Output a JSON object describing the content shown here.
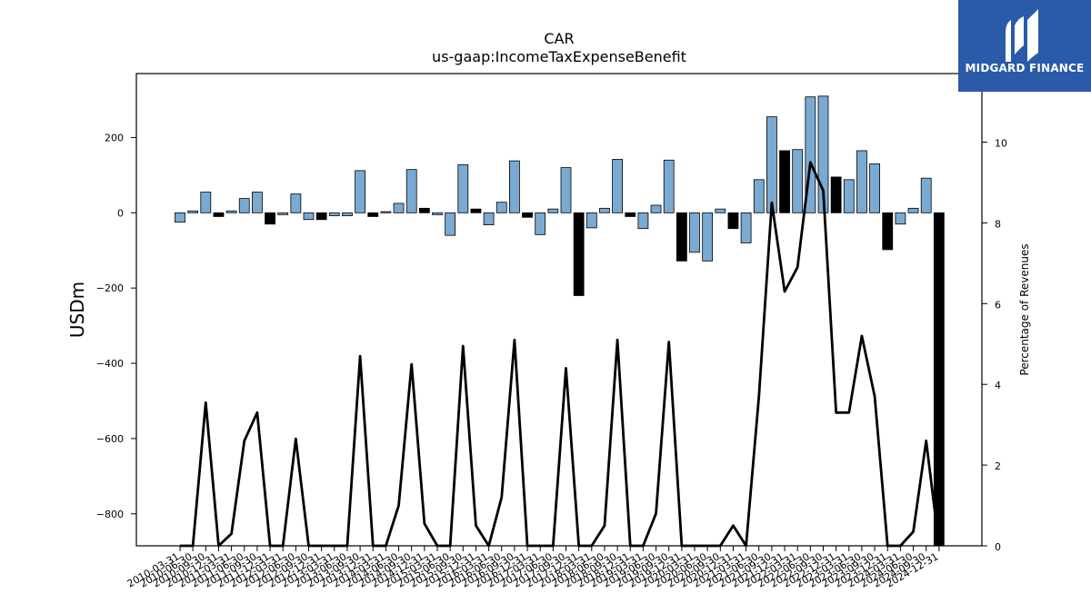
{
  "brand": {
    "name": "MIDGARD FINANCE",
    "logo_icon": "midgard-m-icon",
    "background": "#2a5aa8"
  },
  "chart_data": {
    "type": "bar",
    "title": "CAR",
    "subtitle": "us-gaap:IncomeTaxExpenseBenefit",
    "ylabel": "USDm",
    "ylabel_right": "Percentage of Revenues",
    "ylim": [
      -885,
      370
    ],
    "ylim_right": [
      0,
      11.7
    ],
    "yticks": [
      -800,
      -600,
      -400,
      -200,
      0,
      200
    ],
    "yticks_right": [
      0,
      2,
      4,
      6,
      8,
      10
    ],
    "colors": {
      "positive": "#7aaad1",
      "negative": "#000000",
      "line": "#000000"
    },
    "categories": [
      "2010-03-31",
      "2010-06-30",
      "2010-09-30",
      "2010-12-31",
      "2011-03-31",
      "2011-06-30",
      "2011-09-30",
      "2011-12-31",
      "2012-03-31",
      "2012-06-30",
      "2012-09-30",
      "2012-12-31",
      "2013-03-31",
      "2013-06-30",
      "2013-09-30",
      "2013-12-31",
      "2014-03-31",
      "2014-06-30",
      "2014-09-30",
      "2014-12-31",
      "2015-03-31",
      "2015-06-30",
      "2015-09-30",
      "2015-12-31",
      "2016-03-31",
      "2016-06-30",
      "2016-09-30",
      "2016-12-31",
      "2017-03-31",
      "2017-06-30",
      "2017-09-30",
      "2017-12-31",
      "2018-03-31",
      "2018-06-30",
      "2018-09-30",
      "2018-12-31",
      "2019-03-31",
      "2019-06-30",
      "2019-09-30",
      "2019-12-31",
      "2020-03-31",
      "2020-06-30",
      "2020-09-30",
      "2020-12-31",
      "2021-03-31",
      "2021-06-30",
      "2021-09-30",
      "2021-12-31",
      "2022-03-31",
      "2022-06-30",
      "2022-09-30",
      "2022-12-31",
      "2023-03-31",
      "2023-06-30",
      "2023-09-30",
      "2023-12-31",
      "2024-03-31",
      "2024-06-30",
      "2024-09-30",
      "2024-12-31"
    ],
    "series": [
      {
        "values": [
          -25,
          5,
          55,
          -10,
          5,
          38,
          55,
          -30,
          -5,
          50,
          -18,
          -18,
          -8,
          -8,
          112,
          -10,
          3,
          25,
          115,
          12,
          -5,
          -60,
          128,
          10,
          -32,
          28,
          138,
          -12,
          -58,
          10,
          120,
          -220,
          -40,
          12,
          142,
          -10,
          -42,
          20,
          140,
          -128,
          -105,
          -128,
          10,
          -42,
          -80,
          88,
          255,
          165,
          168,
          308,
          310,
          95,
          88,
          165,
          130,
          -98,
          -30,
          12,
          92,
          -885
        ],
        "highlight": [
          false,
          false,
          false,
          true,
          false,
          false,
          false,
          true,
          false,
          false,
          false,
          true,
          false,
          false,
          false,
          true,
          false,
          false,
          false,
          true,
          false,
          false,
          false,
          true,
          false,
          false,
          false,
          true,
          false,
          false,
          false,
          true,
          false,
          false,
          false,
          true,
          false,
          false,
          false,
          true,
          false,
          false,
          false,
          true,
          false,
          false,
          false,
          true,
          false,
          false,
          false,
          true,
          false,
          false,
          false,
          true,
          false,
          false,
          false,
          true
        ]
      },
      {
        "values": [
          0,
          0,
          3.55,
          0,
          0.3,
          2.6,
          3.3,
          0,
          0,
          2.65,
          0,
          0,
          0,
          0,
          4.7,
          0,
          0,
          1,
          4.5,
          0.55,
          0,
          0,
          4.95,
          0.5,
          0,
          1.2,
          5.1,
          0,
          0,
          0,
          4.4,
          0,
          0,
          0.5,
          5.1,
          0,
          0,
          0.8,
          5.05,
          0,
          0,
          0,
          0,
          0.5,
          0,
          3.7,
          8.5,
          6.3,
          6.9,
          9.5,
          8.8,
          3.3,
          3.3,
          5.2,
          3.7,
          0,
          0,
          0.35,
          2.6,
          0
        ]
      }
    ]
  }
}
